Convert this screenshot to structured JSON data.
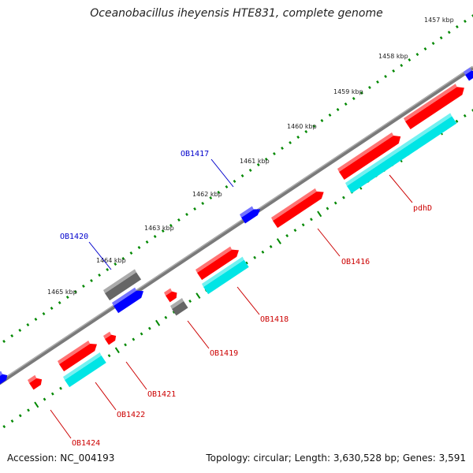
{
  "title": "Oceanobacillus iheyensis HTE831, complete genome",
  "footer": {
    "accession": "Accession: NC_004193",
    "stats": "Topology: circular; Length: 3,630,528 bp; Genes: 3,591"
  },
  "colors": {
    "forward_feature": "#ff0000",
    "reverse_feature": "#0000ff",
    "cds": "#00e5e5",
    "other_feature": "#666666",
    "backbone": "#888888",
    "ticks": "#008800",
    "forward_label": "#cc0000",
    "reverse_label": "#0000cc"
  },
  "kbp_ticks": [
    "1457 kbp",
    "1458 kbp",
    "1459 kbp",
    "1460 kbp",
    "1461 kbp",
    "1462 kbp",
    "1463 kbp",
    "1464 kbp",
    "1465 kbp"
  ],
  "gene_labels": [
    {
      "name": "OB1417",
      "strand": "reverse"
    },
    {
      "name": "OB1420",
      "strand": "reverse"
    },
    {
      "name": "pdhD",
      "strand": "forward"
    },
    {
      "name": "OB1416",
      "strand": "forward"
    },
    {
      "name": "OB1418",
      "strand": "forward"
    },
    {
      "name": "OB1419",
      "strand": "forward"
    },
    {
      "name": "OB1421",
      "strand": "forward"
    },
    {
      "name": "OB1422",
      "strand": "forward"
    },
    {
      "name": "OB1424",
      "strand": "forward"
    }
  ]
}
